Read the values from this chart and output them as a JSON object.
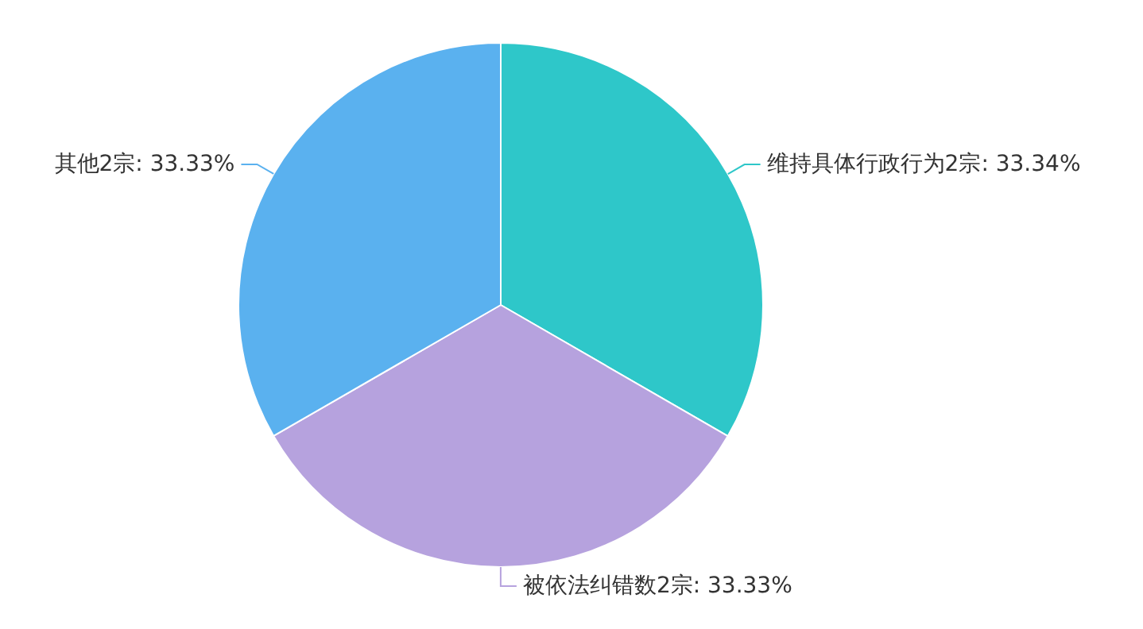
{
  "chart_data": {
    "type": "pie",
    "categories": [
      "维持具体行政行为2宗",
      "被依法纠错数2宗",
      "其他2宗"
    ],
    "values": [
      33.34,
      33.33,
      33.33
    ],
    "value_labels": [
      "33.34%",
      "33.33%",
      "33.33%"
    ],
    "colors": [
      "#2ec7c9",
      "#b6a2de",
      "#5ab1ef"
    ]
  }
}
